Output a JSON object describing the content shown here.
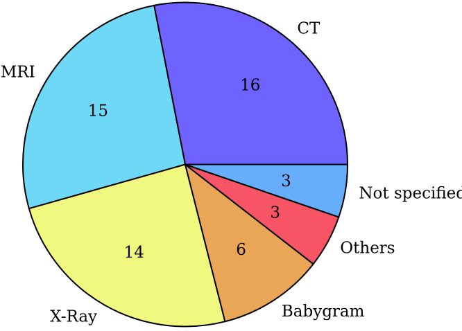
{
  "chart_data": {
    "type": "pie",
    "title": "",
    "slices": [
      {
        "label": "CT",
        "value": 16,
        "value_label": "16",
        "color": "#6f63ff"
      },
      {
        "label": "MRI",
        "value": 15,
        "value_label": "15",
        "color": "#6fd8f7"
      },
      {
        "label": "X-Ray",
        "value": 14,
        "value_label": "14",
        "color": "#f1f87f"
      },
      {
        "label": "Babygram",
        "value": 6,
        "value_label": "6",
        "color": "#eaa657"
      },
      {
        "label": "Others",
        "value": 3,
        "value_label": "3",
        "color": "#f75465"
      },
      {
        "label": "Not specified",
        "value": 3,
        "value_label": "3",
        "color": "#66aefc"
      }
    ],
    "start_angle_deg": 0,
    "direction": "counterclockwise",
    "outline_color": "#000000"
  }
}
